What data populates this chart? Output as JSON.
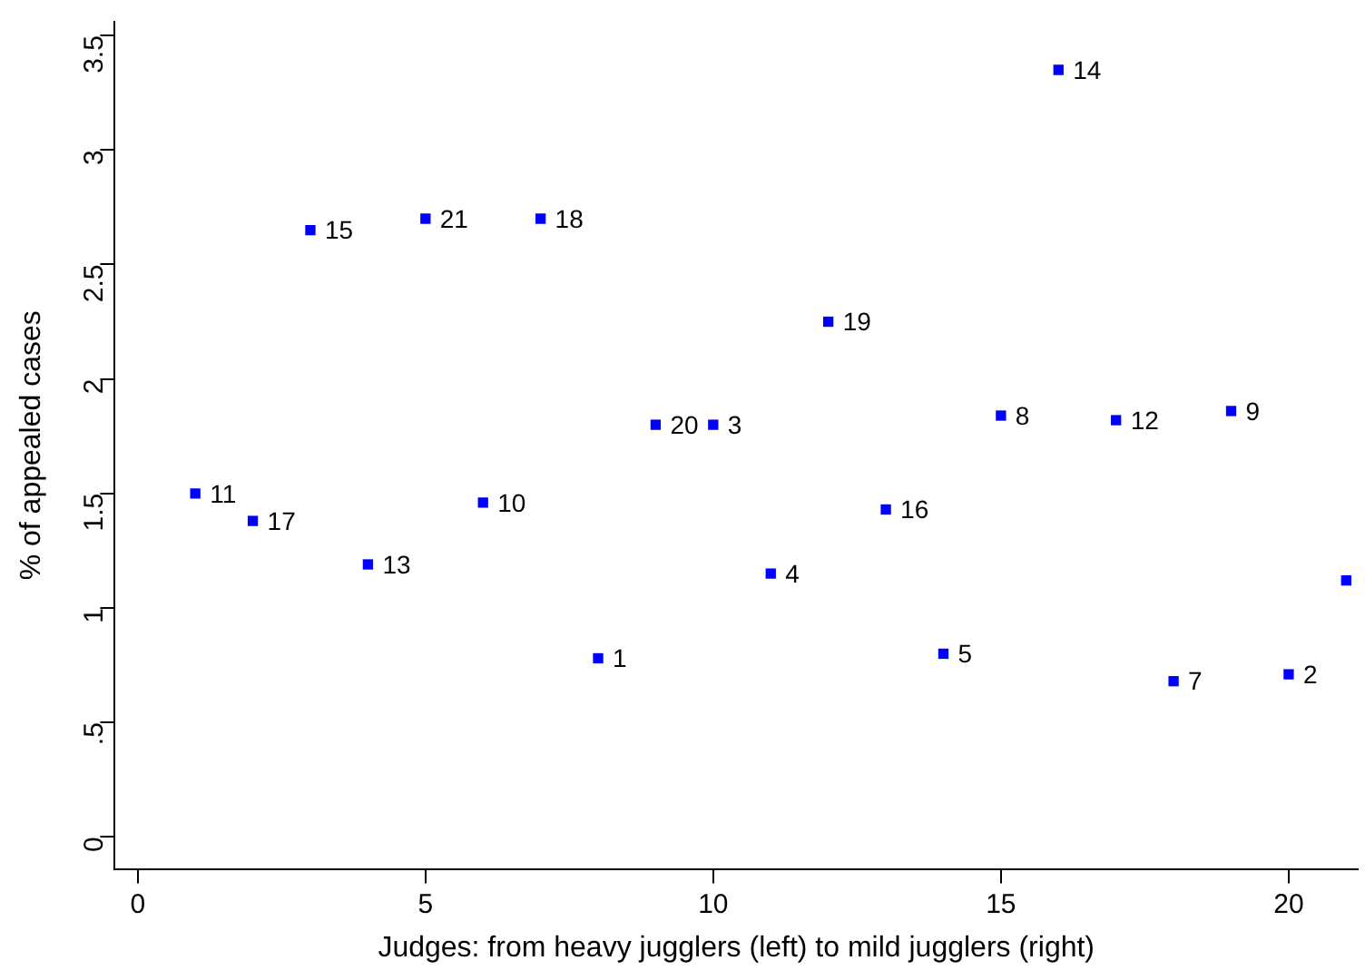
{
  "chart_data": {
    "type": "scatter",
    "xlabel": "Judges: from heavy jugglers (left) to mild jugglers (right)",
    "ylabel": "% of appealed cases",
    "series": [
      {
        "color": "#0000ff",
        "x": [
          1,
          2,
          3,
          4,
          5,
          6,
          7,
          8,
          9,
          10,
          11,
          12,
          13,
          14,
          15,
          16,
          17,
          18,
          19,
          20,
          21
        ],
        "values": [
          1.5,
          1.38,
          2.65,
          1.19,
          2.7,
          1.46,
          2.7,
          0.78,
          1.8,
          1.8,
          1.15,
          2.25,
          1.43,
          0.8,
          1.84,
          3.35,
          1.82,
          0.68,
          1.86,
          0.71,
          1.12
        ]
      }
    ],
    "annotations": [
      {
        "text": "11",
        "x": 1,
        "y": 1.5
      },
      {
        "text": "17",
        "x": 2,
        "y": 1.38
      },
      {
        "text": "15",
        "x": 3,
        "y": 2.65
      },
      {
        "text": "13",
        "x": 4,
        "y": 1.19
      },
      {
        "text": "21",
        "x": 5,
        "y": 2.7
      },
      {
        "text": "10",
        "x": 6,
        "y": 1.46
      },
      {
        "text": "18",
        "x": 7,
        "y": 2.7
      },
      {
        "text": "1",
        "x": 8,
        "y": 0.78
      },
      {
        "text": "20",
        "x": 9,
        "y": 1.8
      },
      {
        "text": "3",
        "x": 10,
        "y": 1.8
      },
      {
        "text": "4",
        "x": 11,
        "y": 1.15
      },
      {
        "text": "19",
        "x": 12,
        "y": 2.25
      },
      {
        "text": "16",
        "x": 13,
        "y": 1.43
      },
      {
        "text": "5",
        "x": 14,
        "y": 0.8
      },
      {
        "text": "8",
        "x": 15,
        "y": 1.84
      },
      {
        "text": "14",
        "x": 16,
        "y": 3.35
      },
      {
        "text": "12",
        "x": 17,
        "y": 1.82
      },
      {
        "text": "7",
        "x": 18,
        "y": 0.68
      },
      {
        "text": "9",
        "x": 19,
        "y": 1.86
      },
      {
        "text": "2",
        "x": 20,
        "y": 0.71
      }
    ],
    "xlim": [
      -0.4,
      21.2
    ],
    "xticks": [
      0,
      5,
      10,
      15,
      20
    ],
    "ylim": [
      -0.14,
      3.56
    ],
    "yticks": [
      0,
      {
        "value": 0.5,
        "label": ".5"
      },
      1,
      1.5,
      2,
      2.5,
      3,
      3.5
    ],
    "marker": "square",
    "grid": false,
    "legend": false
  }
}
